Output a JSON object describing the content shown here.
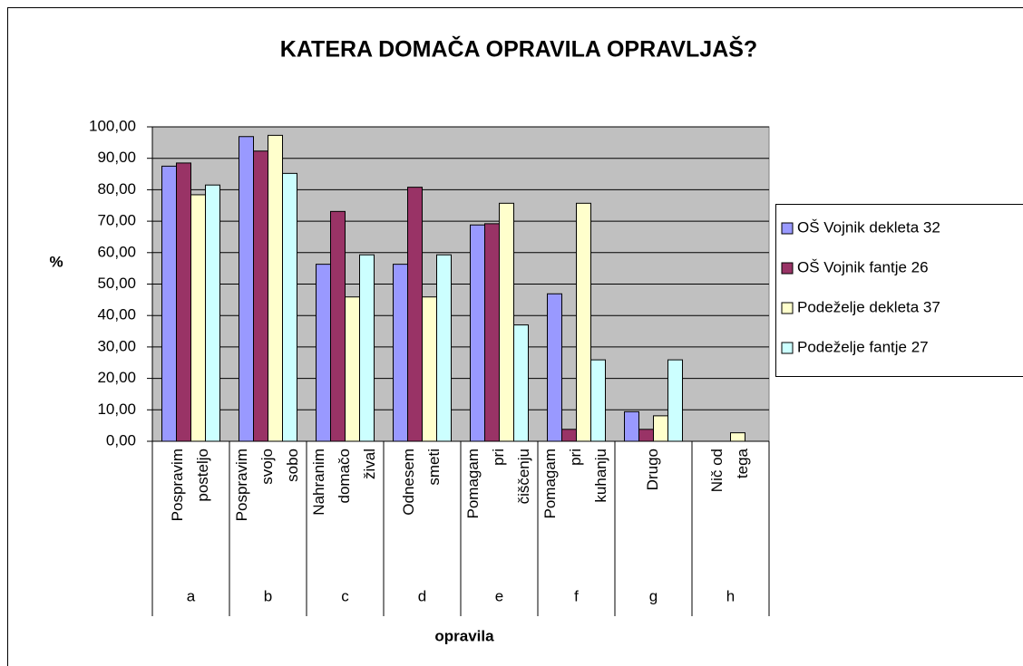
{
  "chart_data": {
    "type": "bar",
    "title": "KATERA DOMAČA OPRAVILA OPRAVLJAŠ?",
    "y_label": "%",
    "x_label": "opravila",
    "categories": [
      [
        "Pospravim",
        "posteljo"
      ],
      [
        "Pospravim",
        "svojo",
        "sobo"
      ],
      [
        "Nahranim",
        "domačo",
        "žival"
      ],
      [
        "Odnesem",
        "smeti"
      ],
      [
        "Pomagam",
        "pri",
        "čiščenju"
      ],
      [
        "Pomagam",
        "pri",
        "kuhanju"
      ],
      [
        "Drugo"
      ],
      [
        "Nič od",
        "tega"
      ]
    ],
    "groups": [
      "a",
      "b",
      "c",
      "d",
      "e",
      "f",
      "g",
      "h"
    ],
    "series": [
      {
        "name": "OŠ Vojnik dekleta  32",
        "color": "#9999ff",
        "values": [
          87.5,
          96.9,
          56.3,
          56.3,
          68.8,
          46.9,
          9.4,
          0
        ]
      },
      {
        "name": "OŠ Vojnik fantje 26",
        "color": "#993366",
        "values": [
          88.5,
          92.3,
          73.1,
          80.8,
          69.2,
          3.8,
          3.8,
          0
        ]
      },
      {
        "name": "Podeželje dekleta  37",
        "color": "#ffffcc",
        "values": [
          78.4,
          97.3,
          45.9,
          45.9,
          75.7,
          75.7,
          8.1,
          2.7
        ]
      },
      {
        "name": "Podeželje fantje 27",
        "color": "#ccffff",
        "values": [
          81.5,
          85.2,
          59.3,
          59.3,
          37.0,
          25.9,
          25.9,
          0
        ]
      }
    ],
    "ylim": [
      0,
      100
    ],
    "yticks": [
      {
        "value": 0,
        "label": "0,00"
      },
      {
        "value": 10,
        "label": "10,00"
      },
      {
        "value": 20,
        "label": "20,00"
      },
      {
        "value": 30,
        "label": "30,00"
      },
      {
        "value": 40,
        "label": "40,00"
      },
      {
        "value": 50,
        "label": "50,00"
      },
      {
        "value": 60,
        "label": "60,00"
      },
      {
        "value": 70,
        "label": "70,00"
      },
      {
        "value": 80,
        "label": "80,00"
      },
      {
        "value": 90,
        "label": "90,00"
      },
      {
        "value": 100,
        "label": "100,00"
      }
    ],
    "grid": true,
    "plot_background": "#c0c0c0",
    "legend": "right"
  }
}
